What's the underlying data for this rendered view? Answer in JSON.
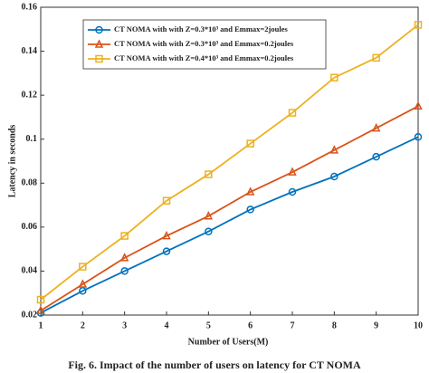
{
  "chart_data": {
    "type": "line",
    "x_label": "Number of Users(M)",
    "y_label": "Latency in seconds",
    "caption": "Fig. 6. Impact of the number of users on latency for CT NOMA",
    "x": [
      1,
      2,
      3,
      4,
      5,
      6,
      7,
      8,
      9,
      10
    ],
    "series": [
      {
        "name": "CT NOMA with with Z=0.3*10³ and Emmax=2joules",
        "color": "#0072bd",
        "marker": "circle",
        "values": [
          0.021,
          0.031,
          0.04,
          0.049,
          0.058,
          0.068,
          0.076,
          0.083,
          0.092,
          0.101
        ]
      },
      {
        "name": "CT NOMA with with Z=0.3*10³ and Emmax=0.2joules",
        "color": "#d95319",
        "marker": "triangle",
        "values": [
          0.022,
          0.034,
          0.046,
          0.056,
          0.065,
          0.076,
          0.085,
          0.095,
          0.105,
          0.115
        ]
      },
      {
        "name": "CT NOMA with with Z=0.4*10³ and Emmax=0.2joules",
        "color": "#edb120",
        "marker": "square",
        "values": [
          0.027,
          0.042,
          0.056,
          0.072,
          0.084,
          0.098,
          0.112,
          0.128,
          0.137,
          0.152
        ]
      }
    ],
    "xlim": [
      1,
      10
    ],
    "xticks": [
      1,
      2,
      3,
      4,
      5,
      6,
      7,
      8,
      9,
      10
    ],
    "ylim": [
      0.02,
      0.16
    ],
    "yticks": [
      0.02,
      0.04,
      0.06,
      0.08,
      0.1,
      0.12,
      0.14,
      0.16
    ],
    "grid": false,
    "legend": "upper-left"
  }
}
